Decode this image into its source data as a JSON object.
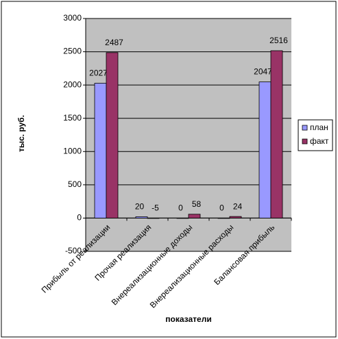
{
  "chart_data": {
    "type": "bar",
    "y_label": "тыс. руб.",
    "x_label": "показатели",
    "categories": [
      "Прибыль от реализации",
      "Прочая реализация",
      "Внереализационные доходы",
      "Внереализационные расходы",
      "Балансовая прибыль"
    ],
    "series": [
      {
        "name": "план",
        "color": "#9999ff",
        "values": [
          2027,
          20,
          0,
          0,
          2047
        ]
      },
      {
        "name": "факт",
        "color": "#993366",
        "values": [
          2487,
          -5,
          58,
          24,
          2516
        ]
      }
    ],
    "ylim": [
      -500,
      3000
    ],
    "yticks": [
      -500,
      0,
      500,
      1000,
      1500,
      2000,
      2500,
      3000
    ],
    "grid": true,
    "legend": "right"
  }
}
